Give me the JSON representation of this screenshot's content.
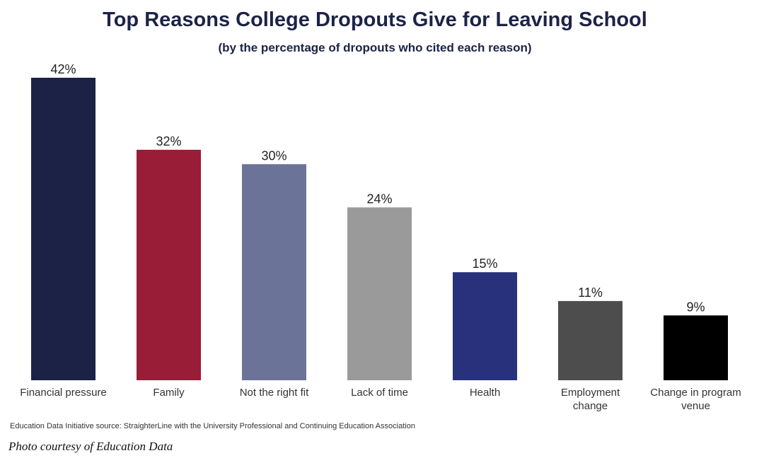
{
  "chart_data": {
    "type": "bar",
    "title": "Top Reasons College Dropouts Give for Leaving School",
    "subtitle": "(by the percentage of dropouts who cited each reason)",
    "categories": [
      [
        "Financial pressure"
      ],
      [
        "Family"
      ],
      [
        "Not the right fit"
      ],
      [
        "Lack of time"
      ],
      [
        "Health"
      ],
      [
        "Employment",
        "change"
      ],
      [
        "Change in program",
        "venue"
      ]
    ],
    "values": [
      42,
      32,
      30,
      24,
      15,
      11,
      9
    ],
    "value_labels": [
      "42%",
      "32%",
      "30%",
      "24%",
      "15%",
      "11%",
      "9%"
    ],
    "colors": [
      "#1b2246",
      "#9a1d37",
      "#6c7399",
      "#9a9a9a",
      "#28327c",
      "#4d4d4d",
      "#000000"
    ],
    "xlabel": "",
    "ylabel": "",
    "ylim": [
      0,
      42
    ],
    "grid": false,
    "legend": "none"
  },
  "source": "Education Data Initiative source: StraighterLine with the University Professional and Continuing Education Association",
  "credit": "Photo courtesy of Education Data"
}
